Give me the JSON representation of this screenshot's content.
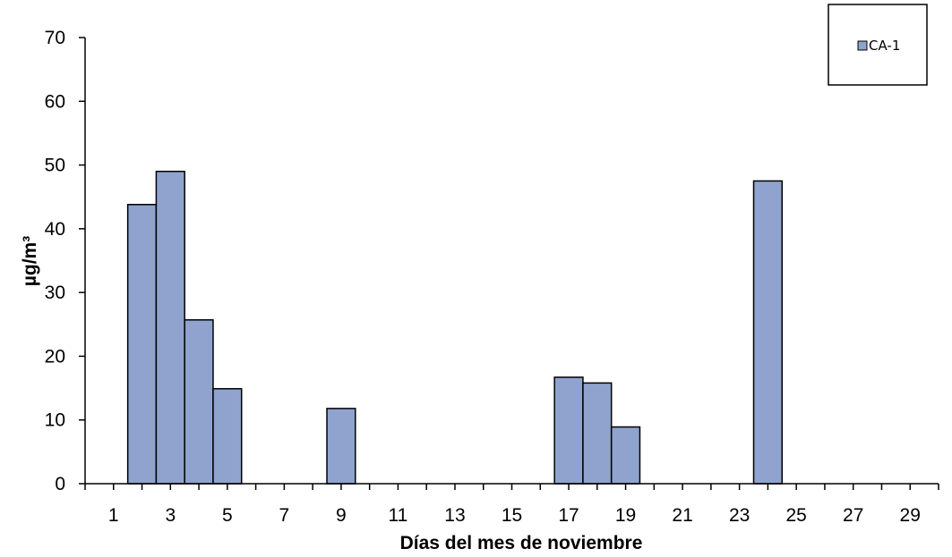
{
  "chart_data": {
    "type": "bar",
    "xlabel": "Días del mes de noviembre",
    "ylabel": "µg/m³",
    "ylim": [
      0,
      70
    ],
    "yticks": [
      0,
      10,
      20,
      30,
      40,
      50,
      60,
      70
    ],
    "xlim": [
      1,
      30
    ],
    "xticks": [
      1,
      3,
      5,
      7,
      9,
      11,
      13,
      15,
      17,
      19,
      21,
      23,
      25,
      27,
      29
    ],
    "legend_position": "top-right",
    "grid": false,
    "series": [
      {
        "name": "CA-1",
        "color": "#8FA3CE",
        "points": [
          {
            "day": 2,
            "value": 43.8
          },
          {
            "day": 3,
            "value": 49.0
          },
          {
            "day": 4,
            "value": 25.7
          },
          {
            "day": 5,
            "value": 14.9
          },
          {
            "day": 9,
            "value": 11.8
          },
          {
            "day": 17,
            "value": 16.7
          },
          {
            "day": 18,
            "value": 15.8
          },
          {
            "day": 19,
            "value": 8.9
          },
          {
            "day": 24,
            "value": 47.5
          }
        ]
      }
    ]
  }
}
